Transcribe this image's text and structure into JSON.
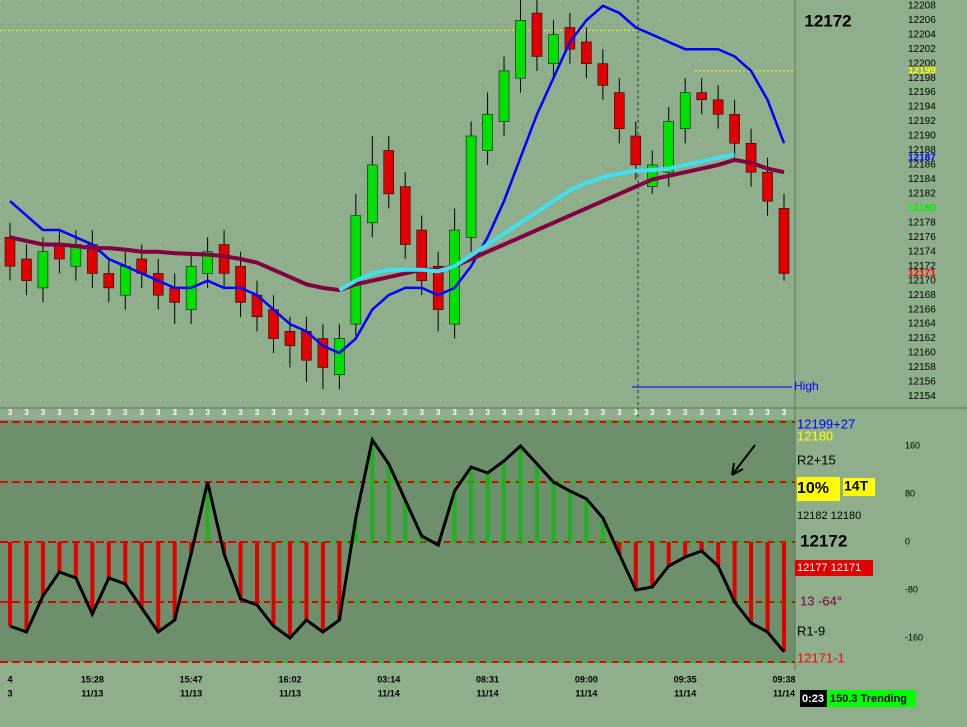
{
  "chart_data": [
    {
      "type": "candlestick",
      "title": "12172",
      "ylim": [
        12152.4,
        12208.8
      ],
      "yticks": [
        12154,
        12156,
        12158,
        12160,
        12162,
        12164,
        12166,
        12168,
        12170,
        12172,
        12174,
        12176,
        12178,
        12180,
        12182,
        12184,
        12186,
        12188,
        12190,
        12192,
        12194,
        12196,
        12198,
        12200,
        12202,
        12204,
        12206,
        12208
      ],
      "up_color": "#00e000",
      "down_color": "#e00000",
      "open": [
        12176,
        12173,
        12169,
        12175,
        12172,
        12175,
        12171,
        12168,
        12173,
        12171,
        12169,
        12166,
        12171,
        12175,
        12172,
        12168,
        12166,
        12163,
        12163,
        12162,
        12157,
        12164,
        12178,
        12188,
        12183,
        12177,
        12172,
        12164,
        12176,
        12188,
        12192,
        12198,
        12207,
        12200,
        12205,
        12203,
        12200,
        12196,
        12190,
        12183,
        12185,
        12191,
        12196,
        12195,
        12193,
        12189,
        12185,
        12180
      ],
      "high": [
        12178,
        12175,
        12176,
        12177,
        12177,
        12177,
        12173,
        12174,
        12175,
        12173,
        12171,
        12174,
        12176,
        12177,
        12174,
        12170,
        12168,
        12165,
        12165,
        12164,
        12164,
        12182,
        12190,
        12190,
        12185,
        12179,
        12174,
        12180,
        12192,
        12196,
        12201,
        12209,
        12209,
        12206,
        12207,
        12205,
        12202,
        12198,
        12192,
        12188,
        12194,
        12198,
        12198,
        12197,
        12195,
        12191,
        12187,
        12182
      ],
      "low": [
        12170,
        12168,
        12167,
        12171,
        12170,
        12169,
        12167,
        12166,
        12169,
        12166,
        12164,
        12164,
        12169,
        12169,
        12165,
        12163,
        12160,
        12158,
        12156,
        12155,
        12155,
        12162,
        12176,
        12180,
        12173,
        12168,
        12163,
        12162,
        12174,
        12186,
        12190,
        12196,
        12199,
        12198,
        12200,
        12198,
        12195,
        12189,
        12184,
        12182,
        12183,
        12189,
        12193,
        12191,
        12187,
        12183,
        12179,
        12170
      ],
      "close": [
        12172,
        12170,
        12174,
        12173,
        12175,
        12171,
        12169,
        12172,
        12171,
        12168,
        12167,
        12172,
        12174,
        12171,
        12167,
        12165,
        12162,
        12161,
        12159,
        12158,
        12162,
        12179,
        12186,
        12182,
        12175,
        12170,
        12166,
        12177,
        12190,
        12193,
        12199,
        12206,
        12201,
        12204,
        12202,
        12200,
        12197,
        12191,
        12186,
        12186,
        12192,
        12196,
        12195,
        12193,
        12189,
        12185,
        12181,
        12171
      ],
      "series": [
        {
          "name": "fast",
          "color": "#0000ff",
          "values": [
            12181,
            12179,
            12177,
            12177,
            12176,
            12175,
            12173,
            12172,
            12171,
            12170,
            12169,
            12169,
            12170,
            12169,
            12169,
            12168,
            12166,
            12164,
            12163,
            12161,
            12160,
            12162,
            12166,
            12168,
            12169,
            12169,
            12168,
            12169,
            12172,
            12176,
            12181,
            12187,
            12193,
            12198,
            12203,
            12206,
            12208,
            12207,
            12205,
            12204,
            12203,
            12202,
            12202,
            12202,
            12201,
            12199,
            12195,
            12189
          ]
        },
        {
          "name": "slow",
          "color": "#800040",
          "values": [
            12176,
            12175.5,
            12175,
            12175,
            12174.8,
            12174.5,
            12174.5,
            12174.3,
            12174,
            12174,
            12173.8,
            12173.7,
            12173.6,
            12173.4,
            12173,
            12172.5,
            12171.5,
            12170.5,
            12169.5,
            12169,
            12168.7,
            12169.5,
            12170,
            12170.5,
            12171,
            12171.5,
            12171.5,
            12172,
            12173,
            12174,
            12175,
            12176,
            12177,
            12178,
            12179,
            12180,
            12181,
            12182,
            12183,
            12184,
            12184.5,
            12185,
            12185.5,
            12186,
            12186.7,
            12186.3,
            12185.5,
            12185
          ]
        },
        {
          "name": "mid",
          "color": "#40e0f0",
          "values": [
            null,
            null,
            null,
            null,
            null,
            null,
            null,
            null,
            null,
            null,
            null,
            null,
            null,
            null,
            null,
            null,
            null,
            null,
            null,
            null,
            12168.7,
            12170,
            12171,
            12171.5,
            12171.5,
            12171.5,
            12171.3,
            12172,
            12173.5,
            12175,
            12176.5,
            12178,
            12179.5,
            12181,
            12182.5,
            12183.5,
            12184.3,
            12184.8,
            12185.2,
            12185.3,
            12185.5,
            12186,
            12186.5,
            12187,
            12187.4,
            null,
            null,
            null
          ]
        }
      ],
      "levels": [
        {
          "value": 12204.6,
          "color": "#ffff00"
        },
        {
          "value": 12199,
          "color": "#ffff00"
        }
      ],
      "high_line": {
        "label": "High",
        "value": 12155.3,
        "color": "#0000ff"
      },
      "price_markers": [
        {
          "value": 12199,
          "color": "#ffff00"
        },
        {
          "value": 12187,
          "color": "#0000ff"
        },
        {
          "value": 12180,
          "color": "#00ff00"
        },
        {
          "value": 12171,
          "color": "#ff0000"
        }
      ]
    },
    {
      "type": "line",
      "ylim": [
        -210,
        223.3
      ],
      "yticks": [
        -160,
        -80,
        0,
        80,
        160
      ],
      "levels": [
        -200,
        -100,
        0,
        100,
        200
      ],
      "bar_marker": "3",
      "times": [
        "4",
        null,
        null,
        null,
        null,
        "15:28",
        null,
        null,
        null,
        null,
        null,
        "15:47",
        null,
        null,
        null,
        null,
        null,
        "16:02",
        null,
        null,
        null,
        null,
        null,
        "03:14",
        null,
        null,
        null,
        null,
        null,
        "08:31",
        null,
        null,
        null,
        null,
        null,
        "09:00",
        null,
        null,
        null,
        null,
        null,
        "09:35",
        null,
        null,
        null,
        null,
        null,
        "09:38"
      ],
      "dates": [
        "3",
        null,
        null,
        null,
        null,
        "11/13",
        null,
        null,
        null,
        null,
        null,
        "11/13",
        null,
        null,
        null,
        null,
        null,
        "11/13",
        null,
        null,
        null,
        null,
        null,
        "11/14",
        null,
        null,
        null,
        null,
        null,
        "11/14",
        null,
        null,
        null,
        null,
        null,
        "11/14",
        null,
        null,
        null,
        null,
        null,
        "11/14",
        null,
        null,
        null,
        null,
        null,
        "11/14"
      ],
      "positive_color": "#20b020",
      "negative_color": "#e00000",
      "series": [
        {
          "name": "oscillator",
          "color": "#000000",
          "values": [
            -140,
            -150,
            -90,
            -50,
            -60,
            -120,
            -60,
            -70,
            -110,
            -150,
            -130,
            -20,
            100,
            -20,
            -95,
            -105,
            -140,
            -160,
            -130,
            -150,
            -130,
            40,
            170,
            130,
            70,
            10,
            -5,
            85,
            125,
            115,
            135,
            160,
            130,
            100,
            85,
            72,
            40,
            -20,
            -80,
            -75,
            -40,
            -25,
            -15,
            -40,
            -100,
            -135,
            -150,
            -183
          ]
        }
      ],
      "side_labels": [
        {
          "text": "12199+27",
          "color": "#0000ff"
        },
        {
          "text": "12180",
          "color": "#ffff00"
        },
        {
          "text": "R2+15",
          "color": "#000000"
        },
        {
          "text": "10%",
          "color": "#000000"
        },
        {
          "text": "14T",
          "color": "#000000"
        },
        {
          "text": "12182 12180",
          "color": "#000000"
        },
        {
          "text": "12172",
          "color": "#000000"
        },
        {
          "text": "12177 12171",
          "color": "#ffffff"
        },
        {
          "text": "13  -64°",
          "color": "#800040"
        },
        {
          "text": "R1-9",
          "color": "#000000"
        },
        {
          "text": "12171-1",
          "color": "#ff0000"
        }
      ]
    }
  ],
  "status": {
    "timer": "0:23",
    "state": "150.3 Trending"
  }
}
